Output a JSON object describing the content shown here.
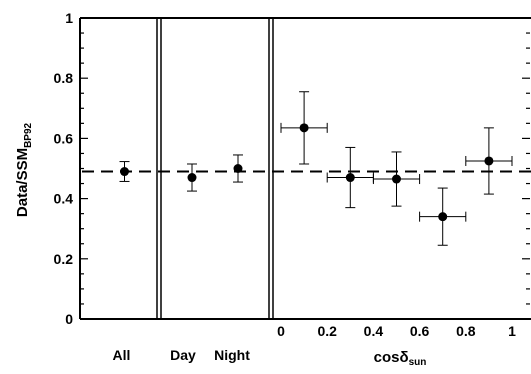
{
  "chart_data": {
    "type": "scatter",
    "ylabel": "Data/SSM",
    "ylabel_subscript": "BP92",
    "ylim": [
      0,
      1
    ],
    "yticks": [
      "0",
      "0.2",
      "0.4",
      "0.6",
      "0.8",
      "1"
    ],
    "reference_line": 0.49,
    "panels": [
      {
        "id": "all",
        "categories": [
          "All"
        ],
        "points": [
          {
            "label": "All",
            "y": 0.49,
            "yerr": 0.033
          }
        ]
      },
      {
        "id": "day-night",
        "categories": [
          "Day",
          "Night"
        ],
        "points": [
          {
            "label": "Day",
            "y": 0.47,
            "yerr": 0.045
          },
          {
            "label": "Night",
            "y": 0.5,
            "yerr": 0.045
          }
        ]
      },
      {
        "id": "cos-sun",
        "xlabel": "cosδ",
        "xlabel_subscript": "sun",
        "xlim": [
          0,
          1
        ],
        "xticks": [
          "0",
          "0.2",
          "0.4",
          "0.6",
          "0.8",
          "1"
        ],
        "points": [
          {
            "x": 0.1,
            "y": 0.635,
            "xerr": 0.1,
            "yerr": 0.12
          },
          {
            "x": 0.3,
            "y": 0.47,
            "xerr": 0.1,
            "yerr": 0.1
          },
          {
            "x": 0.5,
            "y": 0.465,
            "xerr": 0.1,
            "yerr": 0.09
          },
          {
            "x": 0.7,
            "y": 0.34,
            "xerr": 0.1,
            "yerr": 0.095
          },
          {
            "x": 0.9,
            "y": 0.525,
            "xerr": 0.1,
            "yerr": 0.11
          }
        ]
      }
    ]
  }
}
